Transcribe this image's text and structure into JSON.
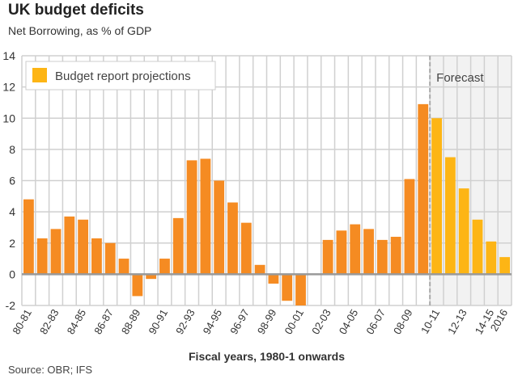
{
  "chart_data": {
    "type": "bar",
    "title": "UK budget deficits",
    "subtitle": "Net Borrowing, as % of GDP",
    "xlabel": "Fiscal years, 1980-1 onwards",
    "ylabel": "",
    "source": "Source: OBR; IFS",
    "ylim": [
      -2,
      14
    ],
    "yticks": [
      -2,
      0,
      2,
      4,
      6,
      8,
      10,
      12,
      14
    ],
    "grid": true,
    "legend_position": "top-left",
    "categories": [
      "80-81",
      "",
      "82-83",
      "",
      "84-85",
      "",
      "86-87",
      "",
      "88-89",
      "",
      "90-91",
      "",
      "92-93",
      "",
      "94-95",
      "",
      "96-97",
      "",
      "98-99",
      "",
      "00-01",
      "",
      "02-03",
      "",
      "04-05",
      "",
      "06-07",
      "",
      "08-09",
      "",
      "10-11",
      "",
      "12-13",
      "",
      "14-15",
      "2016"
    ],
    "values": [
      4.8,
      2.3,
      2.9,
      3.7,
      3.5,
      2.3,
      2.0,
      1.0,
      -1.4,
      -0.3,
      1.0,
      3.6,
      7.3,
      7.4,
      6.0,
      4.6,
      3.3,
      0.6,
      -0.6,
      -1.7,
      -2.0,
      0,
      2.2,
      2.8,
      3.2,
      2.9,
      2.2,
      2.4,
      6.1,
      10.9,
      10.0,
      7.5,
      5.5,
      3.5,
      2.1,
      1.1
    ],
    "forecast_start_index": 30,
    "forecast_label": "Forecast",
    "legend": [
      {
        "name": "Budget report projections",
        "color": "#fdb515"
      }
    ],
    "colors": {
      "actual": "#f58b22",
      "projection": "#fdb515",
      "forecast_bg": "#f2f2f2",
      "grid": "#d0d0d0",
      "zero_line": "#999999"
    }
  }
}
